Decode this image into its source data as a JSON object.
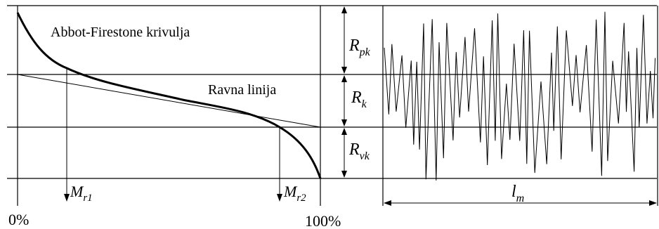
{
  "curve_label": "Abbot-Firestone krivulja",
  "line_label": "Ravna linija",
  "axis": {
    "start": "0%",
    "end": "100%"
  },
  "mr1": {
    "main": "M",
    "sub": "r1"
  },
  "mr2": {
    "main": "M",
    "sub": "r2"
  },
  "rpk": {
    "main": "R",
    "sub": "pk"
  },
  "rk": {
    "main": "R",
    "sub": "k"
  },
  "rvk": {
    "main": "R",
    "sub": "vk"
  },
  "lm": {
    "main": "l",
    "sub": "m"
  },
  "colors": {
    "ink": "#000000",
    "background": "#ffffff"
  }
}
